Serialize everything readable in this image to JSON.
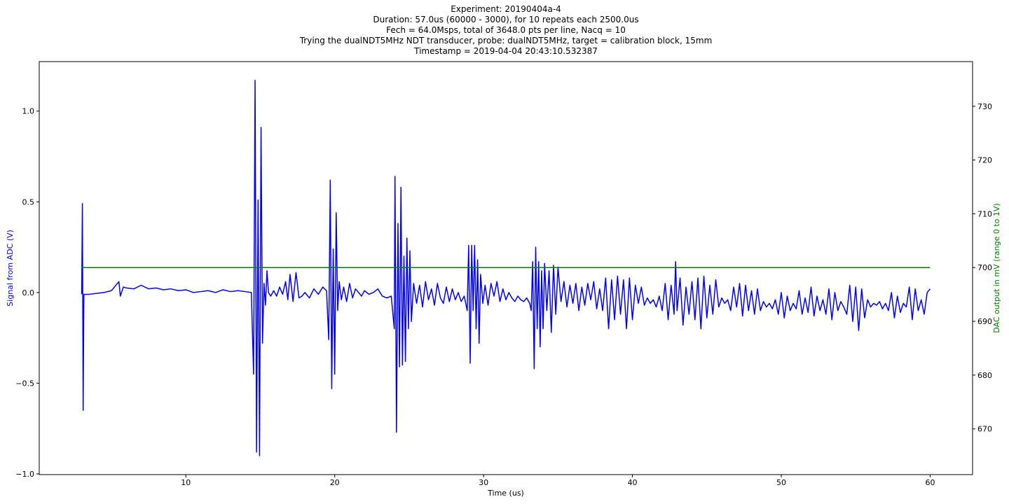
{
  "chart_data": {
    "type": "line",
    "title": [
      "Experiment: 20190404a-4",
      "Duration: 57.0us (60000 - 3000), for 10 repeats each 2500.0us",
      "Fech = 64.0Msps, total of 3648.0 pts per line, Nacq = 10",
      "Trying the dualNDT5MHz NDT transducer, probe: dualNDT5MHz, target = calibration block, 15mm",
      "Timestamp = 2019-04-04 20:43:10.532387"
    ],
    "xlabel": "Time (us)",
    "ylabel": "Signal from ADC (V)",
    "y2label": "DAC output in mV (range 0 to 1V)",
    "xlim": [
      0.15,
      62.85
    ],
    "xticks": [
      10,
      20,
      30,
      40,
      50,
      60
    ],
    "ylim": [
      -1.004,
      1.273
    ],
    "yticks": [
      {
        "value": -1.0,
        "label": "−1.0"
      },
      {
        "value": -0.5,
        "label": "−0.5"
      },
      {
        "value": 0.0,
        "label": "0.0"
      },
      {
        "value": 0.5,
        "label": "0.5"
      },
      {
        "value": 1.0,
        "label": "1.0"
      }
    ],
    "y2lim": [
      661.5,
      738.3
    ],
    "y2ticks": [
      670,
      680,
      690,
      700,
      710,
      720,
      730
    ],
    "series": [
      {
        "name": "Signal from ADC (V)",
        "color": "#0000ff",
        "x": [
          3.0,
          3.05,
          3.1,
          3.15,
          3.5,
          4.0,
          4.5,
          5.0,
          5.5,
          5.6,
          5.8,
          6.0,
          6.5,
          7.0,
          7.5,
          8.0,
          8.5,
          9.0,
          9.5,
          10.0,
          10.5,
          11.0,
          11.5,
          12.0,
          12.5,
          13.0,
          13.5,
          14.0,
          14.4,
          14.55,
          14.65,
          14.75,
          14.85,
          14.95,
          15.05,
          15.15,
          15.25,
          15.35,
          15.45,
          15.55,
          15.7,
          15.9,
          16.1,
          16.3,
          16.5,
          16.7,
          16.85,
          17.0,
          17.2,
          17.4,
          17.6,
          17.8,
          18.0,
          18.3,
          18.6,
          18.9,
          19.2,
          19.45,
          19.6,
          19.7,
          19.8,
          19.9,
          20.0,
          20.1,
          20.2,
          20.3,
          20.45,
          20.6,
          20.8,
          21.0,
          21.2,
          21.4,
          21.6,
          21.8,
          22.0,
          22.3,
          22.6,
          22.9,
          23.2,
          23.5,
          23.8,
          24.0,
          24.05,
          24.15,
          24.25,
          24.35,
          24.45,
          24.55,
          24.65,
          24.75,
          24.85,
          24.95,
          25.05,
          25.15,
          25.3,
          25.5,
          25.7,
          25.9,
          26.1,
          26.3,
          26.5,
          26.7,
          26.9,
          27.1,
          27.3,
          27.5,
          27.7,
          27.9,
          28.1,
          28.3,
          28.5,
          28.7,
          28.9,
          29.0,
          29.1,
          29.2,
          29.3,
          29.4,
          29.5,
          29.6,
          29.7,
          29.8,
          29.95,
          30.1,
          30.3,
          30.5,
          30.7,
          30.9,
          31.1,
          31.3,
          31.5,
          31.7,
          31.9,
          32.1,
          32.3,
          32.5,
          32.7,
          32.9,
          33.1,
          33.2,
          33.3,
          33.4,
          33.5,
          33.6,
          33.7,
          33.8,
          33.9,
          34.0,
          34.1,
          34.25,
          34.4,
          34.55,
          34.7,
          34.85,
          35.0,
          35.2,
          35.4,
          35.6,
          35.8,
          36.0,
          36.2,
          36.4,
          36.6,
          36.8,
          37.0,
          37.2,
          37.4,
          37.6,
          37.8,
          38.0,
          38.2,
          38.4,
          38.6,
          38.8,
          39.0,
          39.2,
          39.4,
          39.6,
          39.8,
          40.0,
          40.2,
          40.4,
          40.6,
          40.8,
          41.0,
          41.2,
          41.4,
          41.6,
          41.8,
          42.0,
          42.2,
          42.4,
          42.6,
          42.8,
          42.9,
          43.0,
          43.2,
          43.4,
          43.6,
          43.8,
          44.0,
          44.2,
          44.4,
          44.6,
          44.8,
          45.0,
          45.2,
          45.4,
          45.6,
          45.8,
          46.0,
          46.2,
          46.4,
          46.6,
          46.8,
          47.0,
          47.2,
          47.4,
          47.6,
          47.8,
          48.0,
          48.2,
          48.4,
          48.6,
          48.8,
          49.0,
          49.2,
          49.4,
          49.6,
          49.8,
          50.0,
          50.2,
          50.4,
          50.6,
          50.8,
          51.0,
          51.2,
          51.4,
          51.6,
          51.8,
          52.0,
          52.2,
          52.4,
          52.6,
          52.8,
          53.0,
          53.2,
          53.4,
          53.6,
          53.8,
          54.0,
          54.2,
          54.4,
          54.6,
          54.8,
          55.0,
          55.2,
          55.4,
          55.6,
          55.8,
          56.0,
          56.2,
          56.4,
          56.6,
          56.8,
          57.0,
          57.2,
          57.4,
          57.6,
          57.8,
          58.0,
          58.2,
          58.4,
          58.6,
          58.8,
          59.0,
          59.2,
          59.4,
          59.6,
          59.8,
          60.0
        ],
        "values": [
          -0.01,
          0.49,
          -0.65,
          -0.01,
          -0.01,
          -0.005,
          0.0,
          0.01,
          0.06,
          -0.02,
          0.03,
          0.025,
          0.02,
          0.04,
          0.02,
          0.025,
          0.015,
          0.02,
          0.01,
          0.015,
          0.0,
          0.005,
          0.01,
          0.0,
          0.015,
          0.005,
          0.01,
          0.005,
          0.0,
          -0.45,
          1.17,
          -0.88,
          0.51,
          -0.9,
          0.91,
          -0.28,
          0.05,
          -0.07,
          0.12,
          0.0,
          -0.02,
          0.01,
          -0.02,
          0.03,
          -0.01,
          0.06,
          -0.04,
          0.1,
          -0.05,
          0.11,
          -0.03,
          -0.02,
          0.0,
          -0.03,
          0.02,
          -0.01,
          0.03,
          0.01,
          -0.26,
          0.62,
          -0.53,
          0.24,
          -0.45,
          0.44,
          -0.1,
          0.06,
          -0.04,
          0.03,
          -0.05,
          0.05,
          -0.03,
          0.02,
          0.0,
          -0.02,
          0.01,
          -0.01,
          0.0,
          0.02,
          -0.02,
          -0.03,
          -0.02,
          -0.2,
          0.64,
          -0.77,
          0.38,
          -0.41,
          0.58,
          -0.4,
          0.2,
          -0.38,
          0.3,
          -0.2,
          0.23,
          -0.16,
          0.05,
          -0.06,
          0.04,
          -0.08,
          0.06,
          -0.04,
          0.02,
          -0.07,
          0.05,
          -0.03,
          -0.06,
          0.03,
          -0.05,
          0.02,
          -0.04,
          0.0,
          -0.05,
          -0.02,
          -0.1,
          0.26,
          -0.39,
          0.26,
          -0.1,
          0.26,
          -0.2,
          0.18,
          -0.28,
          0.1,
          -0.06,
          0.04,
          -0.07,
          0.05,
          -0.02,
          0.06,
          -0.05,
          0.02,
          -0.04,
          0.0,
          -0.03,
          -0.05,
          -0.02,
          -0.04,
          -0.05,
          -0.03,
          -0.06,
          -0.1,
          0.17,
          -0.42,
          0.25,
          -0.2,
          0.17,
          -0.3,
          0.12,
          -0.2,
          0.16,
          -0.1,
          0.12,
          -0.22,
          0.15,
          -0.12,
          0.14,
          -0.05,
          0.06,
          -0.08,
          0.04,
          -0.06,
          0.05,
          -0.1,
          0.03,
          -0.07,
          0.05,
          -0.04,
          0.06,
          -0.09,
          0.02,
          -0.1,
          0.08,
          -0.2,
          0.07,
          -0.15,
          0.09,
          -0.12,
          0.07,
          -0.2,
          0.08,
          -0.15,
          0.04,
          -0.06,
          0.03,
          -0.07,
          -0.03,
          -0.06,
          -0.04,
          -0.08,
          -0.02,
          -0.1,
          0.05,
          -0.15,
          0.04,
          -0.12,
          0.17,
          -0.1,
          0.08,
          -0.18,
          0.03,
          -0.12,
          0.06,
          -0.15,
          0.08,
          -0.2,
          0.09,
          -0.14,
          0.04,
          -0.12,
          0.07,
          -0.08,
          -0.03,
          -0.06,
          -0.04,
          -0.1,
          0.03,
          -0.08,
          0.05,
          -0.13,
          0.04,
          -0.1,
          0.01,
          -0.12,
          0.02,
          -0.1,
          -0.05,
          -0.08,
          -0.06,
          -0.09,
          -0.04,
          -0.12,
          0.0,
          -0.14,
          -0.02,
          -0.1,
          -0.06,
          -0.09,
          0.01,
          -0.12,
          -0.03,
          -0.11,
          0.03,
          -0.13,
          -0.02,
          -0.1,
          -0.04,
          -0.12,
          0.02,
          -0.15,
          0.0,
          -0.1,
          -0.05,
          -0.08,
          -0.12,
          0.04,
          -0.16,
          0.03,
          -0.21,
          0.02,
          -0.14,
          -0.04,
          -0.08,
          -0.06,
          -0.07,
          -0.05,
          -0.09,
          -0.06,
          -0.1,
          0.0,
          -0.14,
          -0.02,
          -0.11,
          -0.06,
          -0.08,
          0.03,
          -0.15,
          0.02,
          -0.1,
          -0.04,
          -0.12,
          0.0,
          0.02
        ]
      },
      {
        "name": "DAC output in mV (range 0 to 1V)",
        "color": "#008000",
        "axis": "y2",
        "x": [
          3,
          60
        ],
        "values": [
          700,
          700
        ]
      }
    ]
  }
}
